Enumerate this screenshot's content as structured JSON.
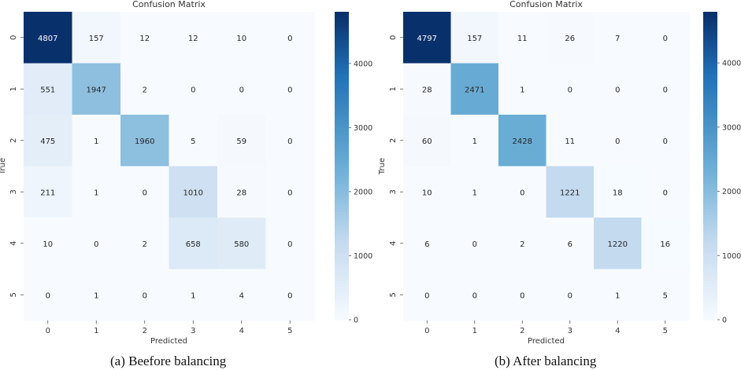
{
  "chart_data": [
    {
      "type": "heatmap",
      "title": "Confusion Matrix",
      "xlabel": "Predicted",
      "ylabel": "True",
      "x_categories": [
        "0",
        "1",
        "2",
        "3",
        "4",
        "5"
      ],
      "y_categories": [
        "0",
        "1",
        "2",
        "3",
        "4",
        "5"
      ],
      "matrix": [
        [
          4807,
          157,
          12,
          12,
          10,
          0
        ],
        [
          551,
          1947,
          2,
          0,
          0,
          0
        ],
        [
          475,
          1,
          1960,
          5,
          59,
          0
        ],
        [
          211,
          1,
          0,
          1010,
          28,
          0
        ],
        [
          10,
          0,
          2,
          658,
          580,
          0
        ],
        [
          0,
          1,
          0,
          1,
          4,
          0
        ]
      ],
      "colorbar": {
        "min": 0,
        "max": 4807,
        "ticks": [
          0,
          1000,
          2000,
          3000,
          4000
        ]
      },
      "colormap": "Blues",
      "caption": "(a) Beefore balancing"
    },
    {
      "type": "heatmap",
      "title": "Confusion Matrix",
      "xlabel": "Predicted",
      "ylabel": "True",
      "x_categories": [
        "0",
        "1",
        "2",
        "3",
        "4",
        "5"
      ],
      "y_categories": [
        "0",
        "1",
        "2",
        "3",
        "4",
        "5"
      ],
      "matrix": [
        [
          4797,
          157,
          11,
          26,
          7,
          0
        ],
        [
          28,
          2471,
          1,
          0,
          0,
          0
        ],
        [
          60,
          1,
          2428,
          11,
          0,
          0
        ],
        [
          10,
          1,
          0,
          1221,
          18,
          0
        ],
        [
          6,
          0,
          2,
          6,
          1220,
          16
        ],
        [
          0,
          0,
          0,
          0,
          1,
          5
        ]
      ],
      "colorbar": {
        "min": 0,
        "max": 4797,
        "ticks": [
          0,
          1000,
          2000,
          3000,
          4000
        ]
      },
      "colormap": "Blues",
      "caption": "(b) After balancing"
    }
  ],
  "colors": {
    "low": "#f7fbff",
    "mid_low": "#c6dbef",
    "mid": "#6baed6",
    "mid_high": "#2171b5",
    "high": "#08306b"
  }
}
